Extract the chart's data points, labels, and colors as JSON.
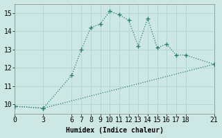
{
  "line1_x": [
    0,
    3,
    6,
    7,
    8,
    9,
    10,
    11,
    12,
    13,
    14,
    15,
    16,
    17,
    18,
    21
  ],
  "line1_y": [
    9.9,
    9.8,
    11.6,
    13.0,
    14.2,
    14.4,
    15.1,
    14.9,
    14.6,
    13.2,
    14.7,
    13.1,
    13.3,
    12.7,
    12.7,
    12.2
  ],
  "line2_x": [
    0,
    3,
    21
  ],
  "line2_y": [
    9.9,
    9.8,
    12.2
  ],
  "line_color": "#2e7d6e",
  "bg_color": "#cde8e4",
  "grid_color": "#b8d8d4",
  "xlabel": "Humidex (Indice chaleur)",
  "xlim": [
    0,
    21
  ],
  "ylim": [
    9.5,
    15.5
  ],
  "xticks": [
    0,
    3,
    6,
    7,
    8,
    9,
    10,
    11,
    12,
    13,
    14,
    15,
    16,
    17,
    18,
    21
  ],
  "yticks": [
    10,
    11,
    12,
    13,
    14,
    15
  ],
  "label_fontsize": 7,
  "tick_fontsize": 7
}
